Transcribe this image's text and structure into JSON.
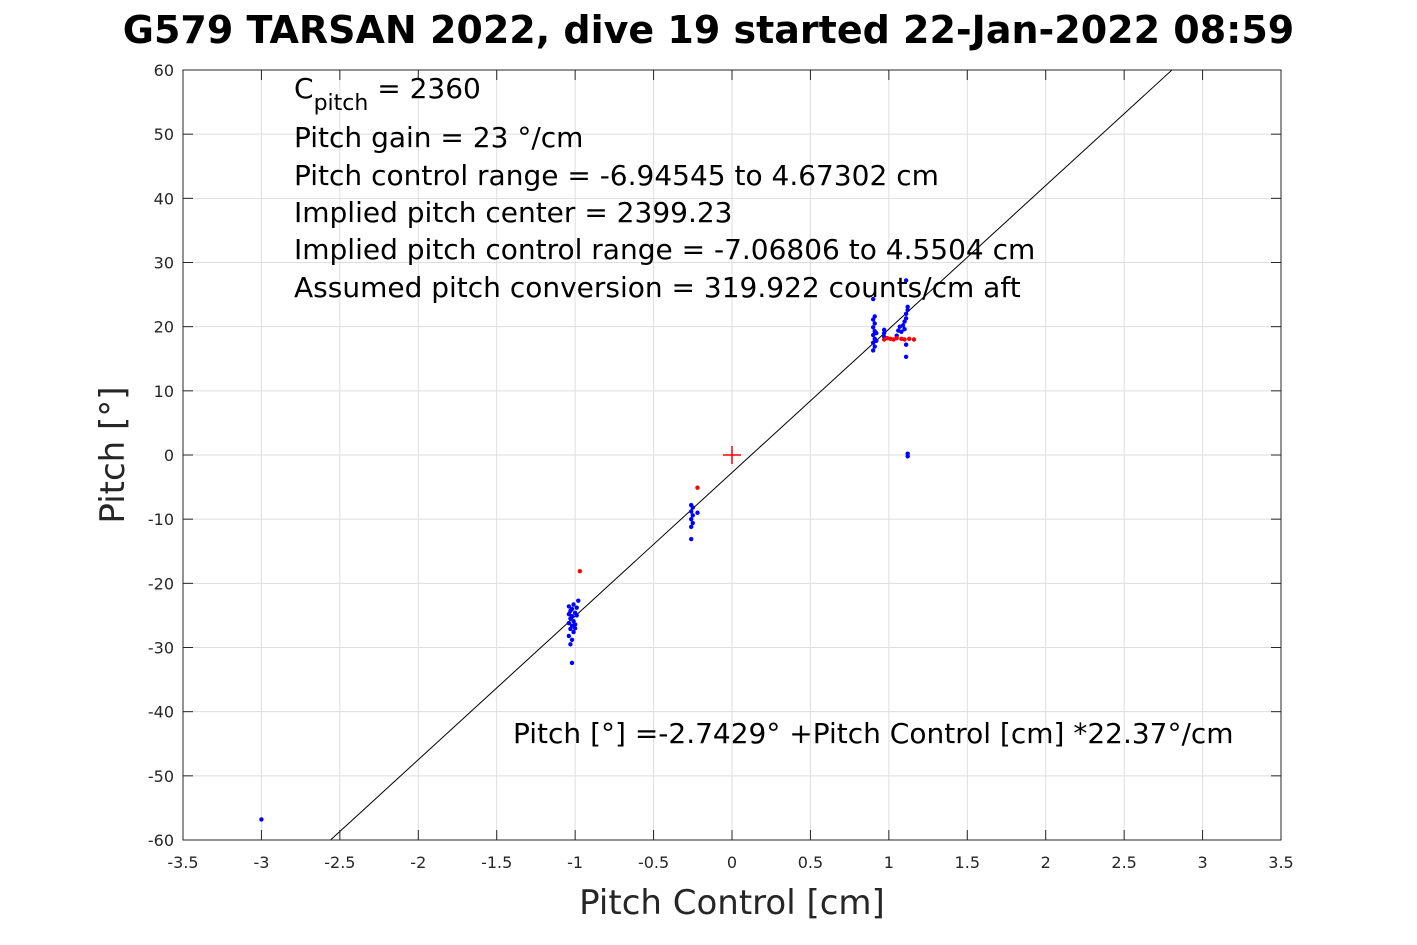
{
  "chart_data": {
    "type": "scatter",
    "title": "G579 TARSAN 2022, dive 19 started 22-Jan-2022 08:59",
    "xlabel": "Pitch Control [cm]",
    "ylabel": "Pitch [°]",
    "xlim": [
      -3.5,
      3.5
    ],
    "ylim": [
      -60,
      60
    ],
    "xticks": [
      -3.5,
      -3,
      -2.5,
      -2,
      -1.5,
      -1,
      -0.5,
      0,
      0.5,
      1,
      1.5,
      2,
      2.5,
      3,
      3.5
    ],
    "yticks": [
      -60,
      -50,
      -40,
      -30,
      -20,
      -10,
      0,
      10,
      20,
      30,
      40,
      50,
      60
    ],
    "xtick_labels": [
      "-3.5",
      "-3",
      "-2.5",
      "-2",
      "-1.5",
      "-1",
      "-0.5",
      "0",
      "0.5",
      "1",
      "1.5",
      "2",
      "2.5",
      "3",
      "3.5"
    ],
    "ytick_labels": [
      "-60",
      "-50",
      "-40",
      "-30",
      "-20",
      "-10",
      "0",
      "10",
      "20",
      "30",
      "40",
      "50",
      "60"
    ],
    "grid": true,
    "annotations": {
      "c_pitch_main": "C",
      "c_pitch_sub": "pitch",
      "c_pitch_value": " = 2360",
      "lines": [
        "Pitch gain = 23 °/cm",
        "Pitch control range = -6.94545 to 4.67302 cm",
        "Implied pitch center = 2399.23",
        "Implied pitch control range = -7.06806 to 4.5504 cm",
        "Assumed pitch conversion = 319.922 counts/cm aft"
      ],
      "fit_equation": "Pitch [°] =-2.7429° +Pitch Control [cm] *22.37°/cm"
    },
    "fit_line": {
      "intercept": -2.7429,
      "slope": 22.37,
      "color": "#000000"
    },
    "center_marker": {
      "x": 0,
      "y": 0,
      "color": "#ff0000"
    },
    "series": [
      {
        "color": "#0000ff",
        "points": [
          [
            -3.0,
            -56.8
          ],
          [
            -1.02,
            -32.4
          ],
          [
            -1.03,
            -29.5
          ],
          [
            -1.02,
            -28.8
          ],
          [
            -1.04,
            -28.2
          ],
          [
            -1.01,
            -27.6
          ],
          [
            -1.03,
            -27.1
          ],
          [
            -1.02,
            -26.6
          ],
          [
            -1.04,
            -26.2
          ],
          [
            -1.01,
            -25.9
          ],
          [
            -1.03,
            -25.5
          ],
          [
            -1.02,
            -25.1
          ],
          [
            -1.04,
            -24.8
          ],
          [
            -1.0,
            -24.6
          ],
          [
            -1.03,
            -24.3
          ],
          [
            -1.02,
            -24.0
          ],
          [
            -1.04,
            -23.6
          ],
          [
            -1.01,
            -23.3
          ],
          [
            -1.0,
            -26.4
          ],
          [
            -0.99,
            -25.0
          ],
          [
            -0.99,
            -23.8
          ],
          [
            -0.98,
            -22.7
          ],
          [
            -1.0,
            -27.0
          ],
          [
            -0.26,
            -13.1
          ],
          [
            -0.26,
            -11.2
          ],
          [
            -0.25,
            -10.6
          ],
          [
            -0.26,
            -10.0
          ],
          [
            -0.25,
            -9.4
          ],
          [
            -0.26,
            -8.8
          ],
          [
            -0.25,
            -8.2
          ],
          [
            -0.26,
            -7.8
          ],
          [
            -0.22,
            -9.0
          ],
          [
            0.9,
            16.3
          ],
          [
            0.91,
            16.9
          ],
          [
            0.9,
            17.5
          ],
          [
            0.91,
            18.1
          ],
          [
            0.9,
            18.7
          ],
          [
            0.91,
            19.3
          ],
          [
            0.9,
            19.9
          ],
          [
            0.91,
            20.5
          ],
          [
            0.9,
            21.1
          ],
          [
            0.91,
            21.6
          ],
          [
            0.9,
            24.3
          ],
          [
            0.92,
            17.8
          ],
          [
            0.92,
            19.0
          ],
          [
            0.97,
            18.4
          ],
          [
            0.97,
            19.0
          ],
          [
            0.97,
            19.5
          ],
          [
            1.05,
            18.6
          ],
          [
            1.06,
            19.4
          ],
          [
            1.07,
            20.0
          ],
          [
            1.08,
            19.2
          ],
          [
            1.09,
            20.2
          ],
          [
            1.1,
            19.6
          ],
          [
            1.1,
            20.8
          ],
          [
            1.11,
            21.3
          ],
          [
            1.11,
            22.0
          ],
          [
            1.12,
            22.6
          ],
          [
            1.12,
            23.1
          ],
          [
            1.11,
            17.2
          ],
          [
            1.11,
            15.3
          ],
          [
            1.11,
            27.2
          ],
          [
            1.12,
            0.2
          ],
          [
            1.12,
            -0.2
          ]
        ]
      },
      {
        "color": "#ff0000",
        "points": [
          [
            -0.97,
            -18.1
          ],
          [
            -0.22,
            -5.1
          ],
          [
            0.97,
            18.0
          ],
          [
            0.99,
            18.2
          ],
          [
            1.01,
            18.1
          ],
          [
            1.03,
            18.0
          ],
          [
            1.05,
            18.2
          ],
          [
            1.08,
            18.1
          ],
          [
            1.1,
            18.0
          ],
          [
            1.13,
            18.1
          ],
          [
            1.16,
            18.0
          ]
        ]
      }
    ]
  }
}
